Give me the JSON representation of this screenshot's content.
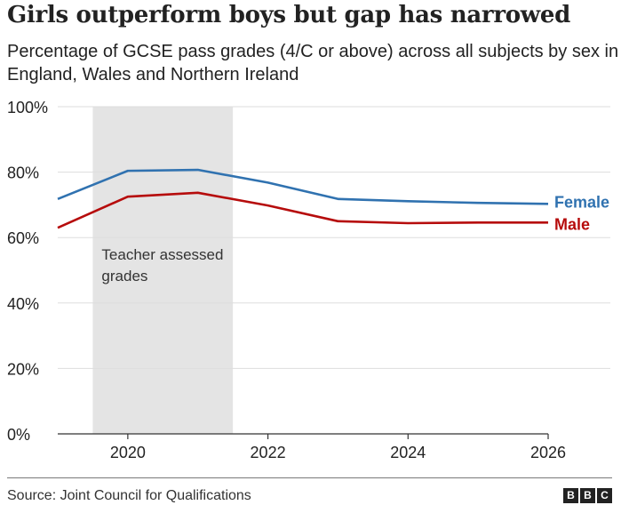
{
  "title": "Girls outperform boys but gap has narrowed",
  "subtitle": "Percentage of GCSE pass grades (4/C or above) across all subjects by sex in England, Wales and Northern Ireland",
  "source": "Source: Joint Council for Qualifications",
  "logo": [
    "B",
    "B",
    "C"
  ],
  "chart_data": {
    "type": "line",
    "title": "Girls outperform boys but gap has narrowed",
    "subtitle": "Percentage of GCSE pass grades (4/C or above) across all subjects by sex in England, Wales and Northern Ireland",
    "xlim": [
      2019,
      2026
    ],
    "ylim": [
      0,
      100
    ],
    "x_ticks": [
      2020,
      2022,
      2024,
      2026
    ],
    "x_tick_labels": [
      "2020",
      "2022",
      "2024",
      "2026"
    ],
    "y_ticks": [
      0,
      20,
      40,
      60,
      80,
      100
    ],
    "y_tick_labels": [
      "0%",
      "20%",
      "40%",
      "60%",
      "80%",
      "100%"
    ],
    "grid": "horizontal",
    "series": [
      {
        "name": "Female",
        "color": "#3072b0",
        "x": [
          2019,
          2020,
          2021,
          2022,
          2023,
          2024,
          2025,
          2026
        ],
        "y": [
          71.8,
          80.4,
          80.7,
          76.8,
          71.8,
          71.1,
          70.6,
          70.3
        ]
      },
      {
        "name": "Male",
        "color": "#b60c0c",
        "x": [
          2019,
          2020,
          2021,
          2022,
          2023,
          2024,
          2025,
          2026
        ],
        "y": [
          63.0,
          72.5,
          73.7,
          69.8,
          65.0,
          64.4,
          64.6,
          64.6
        ]
      }
    ],
    "shaded_region": {
      "x": [
        2019.5,
        2021.5
      ],
      "label_lines": [
        "Teacher assessed",
        "grades"
      ],
      "color": "#e4e4e4"
    }
  }
}
